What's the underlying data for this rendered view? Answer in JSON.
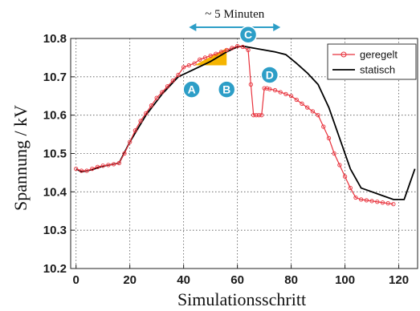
{
  "chart_data": {
    "type": "line",
    "xlabel": "Simulationsschritt",
    "ylabel": "Spannung / kV",
    "xlim": [
      -2,
      127
    ],
    "ylim": [
      10.2,
      10.8
    ],
    "xticks": [
      0,
      20,
      40,
      60,
      80,
      100,
      120
    ],
    "yticks": [
      10.2,
      10.3,
      10.4,
      10.5,
      10.6,
      10.7,
      10.8
    ],
    "xtick_labels": [
      "0",
      "20",
      "40",
      "60",
      "80",
      "100",
      "120"
    ],
    "ytick_labels": [
      "10.2",
      "10.3",
      "10.4",
      "10.5",
      "10.6",
      "10.7",
      "10.8"
    ],
    "grid": true,
    "legend_position": "top-right",
    "series": [
      {
        "name": "geregelt",
        "color": "#e8323c",
        "marker": "circle",
        "x": [
          0,
          2,
          4,
          6,
          8,
          10,
          12,
          14,
          16,
          18,
          20,
          22,
          24,
          26,
          28,
          30,
          32,
          34,
          36,
          38,
          40,
          42,
          44,
          46,
          48,
          50,
          52,
          54,
          56,
          58,
          60,
          62,
          64,
          65,
          66,
          67,
          68,
          69,
          70,
          71,
          72,
          74,
          76,
          78,
          80,
          82,
          84,
          86,
          88,
          90,
          92,
          94,
          96,
          98,
          100,
          102,
          104,
          106,
          108,
          110,
          112,
          114,
          116,
          118
        ],
        "y": [
          10.46,
          10.455,
          10.455,
          10.46,
          10.465,
          10.468,
          10.47,
          10.472,
          10.475,
          10.5,
          10.53,
          10.56,
          10.585,
          10.605,
          10.625,
          10.645,
          10.66,
          10.675,
          10.69,
          10.705,
          10.725,
          10.73,
          10.735,
          10.745,
          10.75,
          10.755,
          10.76,
          10.765,
          10.77,
          10.775,
          10.78,
          10.778,
          10.77,
          10.68,
          10.6,
          10.6,
          10.6,
          10.6,
          10.67,
          10.67,
          10.668,
          10.665,
          10.66,
          10.655,
          10.65,
          10.64,
          10.63,
          10.62,
          10.61,
          10.6,
          10.57,
          10.54,
          10.5,
          10.47,
          10.44,
          10.41,
          10.385,
          10.38,
          10.378,
          10.376,
          10.374,
          10.372,
          10.37,
          10.368
        ]
      },
      {
        "name": "statisch",
        "color": "#000000",
        "marker": "none",
        "x": [
          0,
          2,
          6,
          10,
          16,
          20,
          26,
          32,
          38,
          44,
          50,
          56,
          60,
          62,
          66,
          70,
          74,
          78,
          82,
          86,
          90,
          94,
          98,
          102,
          106,
          110,
          114,
          118,
          122,
          126
        ],
        "y": [
          10.46,
          10.452,
          10.458,
          10.467,
          10.475,
          10.53,
          10.6,
          10.655,
          10.7,
          10.72,
          10.74,
          10.765,
          10.778,
          10.78,
          10.775,
          10.77,
          10.765,
          10.758,
          10.735,
          10.71,
          10.68,
          10.62,
          10.54,
          10.46,
          10.41,
          10.4,
          10.39,
          10.38,
          10.38,
          10.46
        ]
      }
    ],
    "annotations": {
      "span_label": "~ 5 Minuten",
      "span_from_x": 42,
      "span_to_x": 76,
      "triangle": [
        [
          44,
          10.73
        ],
        [
          56,
          10.775
        ],
        [
          56,
          10.73
        ]
      ],
      "triangle_color": "#f5b400",
      "badge_color": "#2d9ec7",
      "badges": [
        {
          "label": "A",
          "x": 43,
          "y": 10.667
        },
        {
          "label": "B",
          "x": 56,
          "y": 10.667
        },
        {
          "label": "C",
          "x": 64,
          "y": 10.81
        },
        {
          "label": "D",
          "x": 72,
          "y": 10.705
        }
      ]
    }
  }
}
